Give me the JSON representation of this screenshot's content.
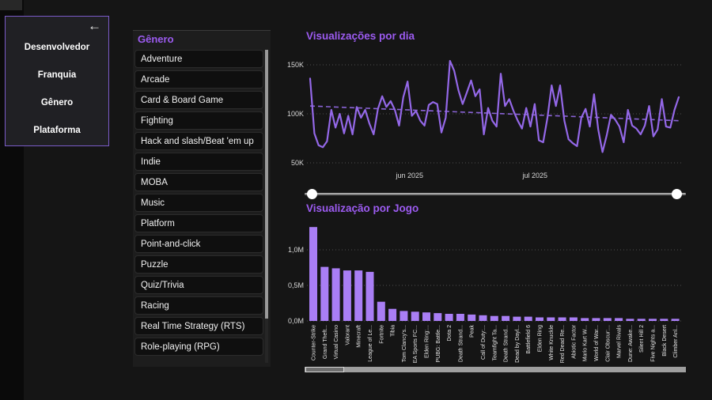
{
  "colors": {
    "accent_purple": "#9c5bf0",
    "line_series": "#9468e8",
    "bar_fill": "#a97ef5",
    "nav_border": "#7a5bc8",
    "background": "#151515"
  },
  "nav": {
    "back_icon": "←",
    "items": [
      {
        "label": "Desenvolvedor"
      },
      {
        "label": "Franquia"
      },
      {
        "label": "Gênero"
      },
      {
        "label": "Plataforma"
      }
    ]
  },
  "genre_panel": {
    "title": "Gênero",
    "items": [
      "Adventure",
      "Arcade",
      "Card & Board Game",
      "Fighting",
      "Hack and slash/Beat 'em up",
      "Indie",
      "MOBA",
      "Music",
      "Platform",
      "Point-and-click",
      "Puzzle",
      "Quiz/Trivia",
      "Racing",
      "Real Time Strategy (RTS)",
      "Role-playing (RPG)"
    ]
  },
  "chart_data": [
    {
      "type": "line",
      "title": "Visualizações por dia",
      "unit": "K",
      "ylim": [
        40,
        160
      ],
      "y_ticks": [
        {
          "label": "50K",
          "value": 50
        },
        {
          "label": "100K",
          "value": 100
        },
        {
          "label": "150K",
          "value": 150
        }
      ],
      "x_ticks": [
        {
          "label": "jun 2025",
          "pos": 0.27
        },
        {
          "label": "jul 2025",
          "pos": 0.61
        }
      ],
      "trendline": {
        "start": 108,
        "end": 93
      },
      "values": [
        136,
        80,
        68,
        66,
        72,
        104,
        86,
        100,
        80,
        98,
        79,
        107,
        96,
        104,
        90,
        79,
        105,
        118,
        107,
        113,
        104,
        88,
        117,
        133,
        98,
        103,
        93,
        88,
        109,
        112,
        110,
        81,
        96,
        154,
        144,
        124,
        110,
        122,
        134,
        118,
        125,
        79,
        106,
        93,
        87,
        141,
        108,
        115,
        103,
        93,
        85,
        106,
        87,
        110,
        73,
        71,
        96,
        129,
        108,
        129,
        93,
        74,
        70,
        67,
        96,
        105,
        87,
        120,
        84,
        61,
        78,
        99,
        94,
        87,
        71,
        104,
        88,
        85,
        79,
        88,
        108,
        77,
        84,
        115,
        87,
        86,
        104,
        117
      ]
    },
    {
      "type": "bar",
      "title": "Visualização por Jogo",
      "unit": "M",
      "ylim": [
        0,
        1.35
      ],
      "y_ticks": [
        {
          "label": "0,0M",
          "value": 0
        },
        {
          "label": "0,5M",
          "value": 0.5
        },
        {
          "label": "1,0M",
          "value": 1.0
        }
      ],
      "categories": [
        "Counter-Strike",
        "Grand Theft...",
        "Virtual Casino",
        "Valorant",
        "Minecraft",
        "League of Le...",
        "Fortnite",
        "Tibia",
        "Tom Clancy's...",
        "EA Sports FC...",
        "Elden Ring:...",
        "PUBG: Battle...",
        "Dota 2",
        "Death Strand...",
        "Peak",
        "Call of Duty:...",
        "Teamfight Ta...",
        "Death Strand...",
        "Dead by Dayl...",
        "Battlefield 6",
        "Elden Ring",
        "White Knuckle",
        "Red Dead Re...",
        "Abiotic Factor",
        "Mario Kart W...",
        "World of War...",
        "Clair Obscur:...",
        "Marvel Rivals",
        "Dune: Awake...",
        "Silent Hill 2",
        "Five Nights a...",
        "Black Desert",
        "Climber Anl..."
      ],
      "values": [
        1.32,
        0.76,
        0.74,
        0.71,
        0.71,
        0.69,
        0.27,
        0.17,
        0.14,
        0.13,
        0.12,
        0.11,
        0.1,
        0.1,
        0.09,
        0.08,
        0.07,
        0.07,
        0.06,
        0.06,
        0.05,
        0.05,
        0.05,
        0.05,
        0.04,
        0.04,
        0.04,
        0.04,
        0.03,
        0.03,
        0.03,
        0.03,
        0.03
      ]
    }
  ]
}
